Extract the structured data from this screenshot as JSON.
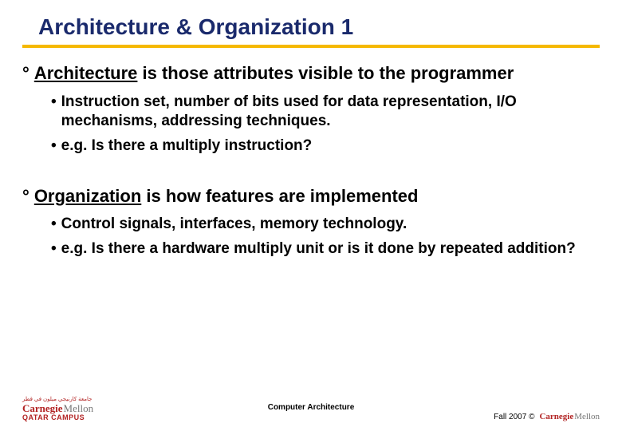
{
  "colors": {
    "title_color": "#1a2a6c",
    "rule_color": "#f5b800",
    "text_color": "#000000",
    "cmu_red": "#b22222",
    "cmu_gray": "#777777",
    "background": "#ffffff"
  },
  "typography": {
    "title_fontsize": 28,
    "heading_fontsize": 22,
    "subitem_fontsize": 19,
    "footer_fontsize": 10
  },
  "title": "Architecture & Organization 1",
  "sections": [
    {
      "term": "Architecture",
      "rest": " is those attributes visible to the programmer",
      "bullets": [
        "Instruction set, number of bits used for data representation, I/O mechanisms, addressing techniques.",
        "e.g. Is there a multiply instruction?"
      ]
    },
    {
      "term": "Organization",
      "rest": " is how features are implemented",
      "bullets": [
        "Control signals, interfaces, memory technology.",
        "e.g. Is there a hardware multiply unit or is it done by repeated addition?"
      ]
    }
  ],
  "footer": {
    "center": "Computer Architecture",
    "right_text": "Fall 2007 ©",
    "logo": {
      "arabic": "جامعة كارنيجي ميلون في قطر",
      "word1": "Carnegie",
      "word2": "Mellon",
      "campus": "QATAR CAMPUS"
    }
  }
}
